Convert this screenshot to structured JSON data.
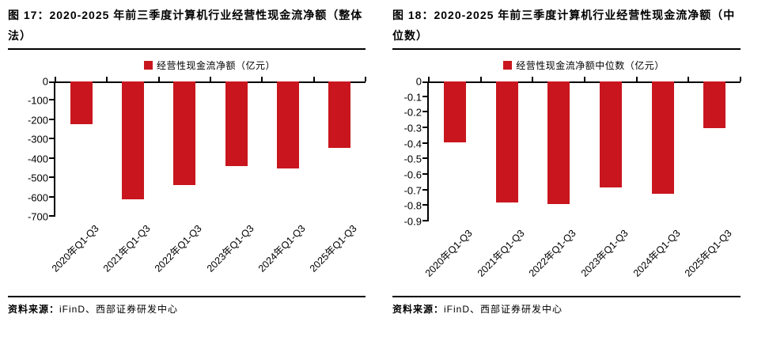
{
  "colors": {
    "bar": "#C9161E",
    "text": "#000000",
    "line": "#000000"
  },
  "source": {
    "label": "资料来源：",
    "text": "iFinD、西部证券研发中心"
  },
  "chart_data": [
    {
      "type": "bar",
      "title": "图 17：2020-2025 年前三季度计算机行业经营性现金流净额（整体法）",
      "legend": "经营性现金流净额（亿元）",
      "categories": [
        "2020年Q1-Q3",
        "2021年Q1-Q3",
        "2022年Q1-Q3",
        "2023年Q1-Q3",
        "2024年Q1-Q3",
        "2025年Q1-Q3"
      ],
      "values": [
        -220,
        -610,
        -535,
        -437,
        -450,
        -344
      ],
      "ylabel": "",
      "xlabel": "",
      "ylim": [
        -700,
        0
      ],
      "yticks": [
        0,
        -100,
        -200,
        -300,
        -400,
        -500,
        -600,
        -700
      ],
      "ytick_labels": [
        "0",
        "-100",
        "-200",
        "-300",
        "-400",
        "-500",
        "-600",
        "-700"
      ],
      "bar_color": "#C9161E",
      "grid": false,
      "legend_position": "top-center"
    },
    {
      "type": "bar",
      "title": "图 18：2020-2025 年前三季度计算机行业经营性现金流净额（中位数）",
      "legend": "经营性现金流净额中位数（亿元）",
      "categories": [
        "2020年Q1-Q3",
        "2021年Q1-Q3",
        "2022年Q1-Q3",
        "2023年Q1-Q3",
        "2024年Q1-Q3",
        "2025年Q1-Q3"
      ],
      "values": [
        -0.39,
        -0.78,
        -0.79,
        -0.68,
        -0.72,
        -0.3
      ],
      "ylabel": "",
      "xlabel": "",
      "ylim": [
        -0.9,
        0
      ],
      "yticks": [
        0,
        -0.1,
        -0.2,
        -0.3,
        -0.4,
        -0.5,
        -0.6,
        -0.7,
        -0.8,
        -0.9
      ],
      "ytick_labels": [
        "0",
        "-0.1",
        "-0.2",
        "-0.3",
        "-0.4",
        "-0.5",
        "-0.6",
        "-0.7",
        "-0.8",
        "-0.9"
      ],
      "bar_color": "#C9161E",
      "grid": false,
      "legend_position": "top-center"
    }
  ]
}
